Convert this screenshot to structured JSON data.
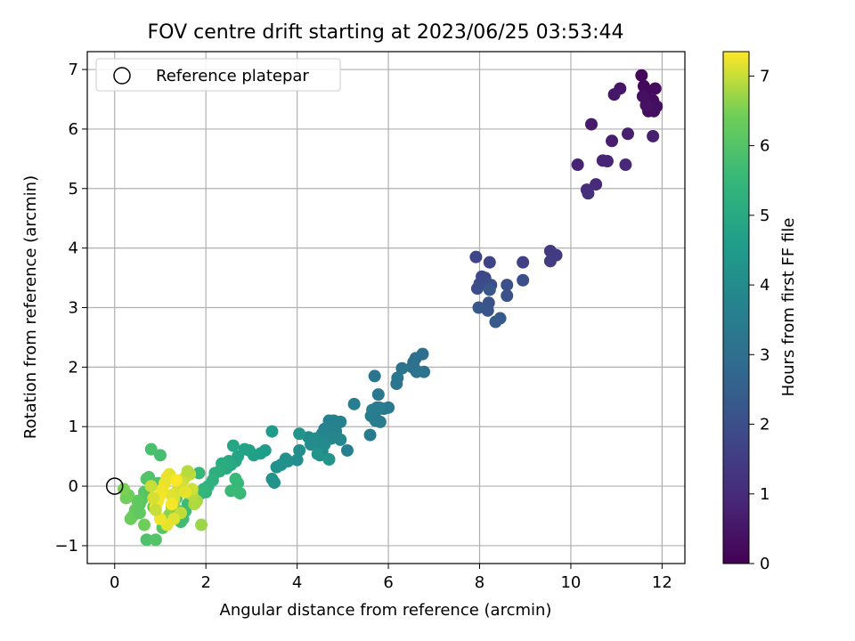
{
  "chart_data": {
    "type": "scatter",
    "title": "FOV centre drift starting at 2023/06/25 03:53:44",
    "xlabel": "Angular distance from reference (arcmin)",
    "ylabel": "Rotation from reference (arcmin)",
    "xlim": [
      -0.6,
      12.5
    ],
    "ylim": [
      -1.3,
      7.3
    ],
    "xticks": [
      0,
      2,
      4,
      6,
      8,
      10,
      12
    ],
    "yticks": [
      -1,
      0,
      1,
      2,
      3,
      4,
      5,
      6,
      7
    ],
    "grid": true,
    "legend": {
      "location": "top-left",
      "entries": [
        "Reference platepar"
      ]
    },
    "reference_point": {
      "x": 0,
      "y": 0,
      "label": "Reference platepar"
    },
    "colorbar": {
      "label": "Hours from first FF file",
      "colormap": "viridis",
      "range": [
        0,
        7.35
      ],
      "ticks": [
        0,
        1,
        2,
        3,
        4,
        5,
        6,
        7
      ]
    },
    "series": [
      {
        "color_by": "hours",
        "x": [
          11.55,
          11.6,
          11.65,
          11.85,
          11.8,
          11.7,
          11.82,
          11.88,
          11.58,
          11.65,
          11.08,
          10.95,
          10.45,
          10.9,
          11.25,
          11.8,
          10.15,
          10.7,
          10.8,
          11.2,
          10.55,
          10.35,
          10.38,
          9.55,
          9.68,
          9.55,
          8.95,
          8.22,
          7.92,
          8.05,
          8.12,
          8.0,
          7.95,
          8.25,
          8.6,
          8.95,
          8.6,
          8.2,
          8.18,
          7.98,
          8.22,
          8.35,
          8.45
        ],
        "y": [
          6.9,
          6.72,
          6.58,
          6.68,
          6.48,
          6.3,
          6.3,
          6.38,
          6.55,
          6.4,
          6.68,
          6.58,
          6.08,
          5.8,
          5.92,
          5.88,
          5.4,
          5.47,
          5.46,
          5.4,
          5.07,
          4.98,
          4.92,
          3.95,
          3.88,
          3.78,
          3.76,
          3.76,
          3.85,
          3.52,
          3.5,
          3.4,
          3.32,
          3.38,
          3.38,
          3.46,
          3.2,
          3.08,
          2.95,
          3.0,
          3.3,
          2.76,
          2.82
        ],
        "hours": [
          0.15,
          0.18,
          0.2,
          0.22,
          0.25,
          0.28,
          0.3,
          0.32,
          0.35,
          0.38,
          0.5,
          0.55,
          0.6,
          0.65,
          0.7,
          0.72,
          0.8,
          0.85,
          0.88,
          0.95,
          1.0,
          1.05,
          1.1,
          1.4,
          1.45,
          1.5,
          1.6,
          1.7,
          1.75,
          1.8,
          1.85,
          1.9,
          1.95,
          2.0,
          2.02,
          2.05,
          2.1,
          2.15,
          2.2,
          2.25,
          2.28,
          2.3,
          2.35
        ]
      },
      {
        "color_by": "hours",
        "x": [
          6.75,
          6.6,
          6.55,
          6.52,
          6.6,
          6.62,
          6.78,
          6.3,
          6.2,
          6.18,
          5.7,
          5.78,
          5.75,
          5.9,
          6.0,
          5.7,
          5.72,
          5.82,
          5.6,
          5.62,
          5.65,
          5.8,
          5.25,
          5.1,
          4.95,
          4.8,
          4.7,
          4.65,
          4.85,
          4.6,
          4.55,
          4.75,
          4.95,
          4.65,
          4.45,
          4.5,
          4.55,
          4.5,
          4.6,
          4.4,
          4.3,
          4.25,
          4.05,
          4.0,
          3.75,
          3.8,
          3.65,
          3.55,
          3.45,
          3.5,
          4.05,
          4.45,
          4.7
        ],
        "y": [
          2.22,
          2.15,
          2.08,
          2.0,
          1.95,
          1.92,
          1.92,
          1.98,
          1.82,
          1.72,
          1.85,
          1.54,
          1.32,
          1.3,
          1.32,
          1.2,
          1.1,
          1.08,
          0.86,
          1.18,
          1.28,
          1.32,
          1.38,
          0.6,
          1.08,
          1.1,
          1.1,
          0.98,
          0.92,
          0.96,
          0.88,
          0.8,
          0.78,
          0.78,
          0.72,
          0.68,
          0.58,
          0.52,
          0.7,
          0.8,
          0.7,
          0.82,
          0.6,
          0.44,
          0.46,
          0.42,
          0.36,
          0.32,
          0.12,
          0.06,
          0.88,
          0.54,
          0.45
        ],
        "hours": [
          3.0,
          3.02,
          3.05,
          3.08,
          3.1,
          3.12,
          3.15,
          3.18,
          3.2,
          3.22,
          3.25,
          3.28,
          3.3,
          3.32,
          3.35,
          3.38,
          3.4,
          3.42,
          3.45,
          3.48,
          3.5,
          3.52,
          3.55,
          3.58,
          3.6,
          3.62,
          3.65,
          3.68,
          3.7,
          3.72,
          3.75,
          3.78,
          3.8,
          3.82,
          3.85,
          3.88,
          3.9,
          3.92,
          3.95,
          3.98,
          4.0,
          4.02,
          4.05,
          4.08,
          4.1,
          4.12,
          4.15,
          4.18,
          4.2,
          4.22,
          4.25,
          4.28,
          4.3
        ]
      },
      {
        "color_by": "hours",
        "x": [
          3.45,
          3.3,
          3.2,
          3.05,
          2.95,
          2.85,
          2.7,
          2.65,
          2.6,
          2.55,
          2.5,
          2.45,
          2.35,
          2.3,
          2.2,
          2.15,
          2.05,
          2.0,
          1.95,
          1.9,
          1.85,
          2.7,
          2.65,
          2.55,
          2.75,
          1.65,
          1.6,
          1.55,
          1.5,
          1.45,
          1.4,
          1.35,
          1.0,
          0.8,
          0.95,
          0.75,
          0.7,
          0.65,
          0.6,
          0.55,
          0.5,
          0.45,
          0.4,
          0.35,
          0.3,
          0.25,
          0.2,
          1.1,
          1.2,
          1.25,
          1.3,
          1.9,
          0.7,
          0.9,
          1.05,
          0.55,
          0.85,
          0.65
        ],
        "y": [
          0.92,
          0.6,
          0.55,
          0.52,
          0.6,
          0.62,
          0.5,
          0.42,
          0.68,
          0.36,
          0.42,
          0.3,
          0.38,
          0.25,
          0.22,
          0.1,
          0.0,
          -0.1,
          -0.05,
          -0.12,
          0.22,
          0.05,
          0.12,
          -0.08,
          -0.12,
          -0.15,
          -0.3,
          -0.42,
          -0.55,
          -0.6,
          -0.42,
          -0.2,
          0.52,
          0.62,
          0.05,
          0.15,
          0.12,
          -0.1,
          -0.22,
          -0.3,
          -0.25,
          -0.4,
          -0.5,
          -0.55,
          -0.15,
          -0.2,
          -0.05,
          -0.6,
          -0.48,
          -0.35,
          -0.28,
          -0.65,
          -0.9,
          -0.9,
          -0.7,
          -0.45,
          -0.35,
          -0.65
        ],
        "hours": [
          4.5,
          4.55,
          4.6,
          4.65,
          4.7,
          4.75,
          4.8,
          4.85,
          4.9,
          4.95,
          5.0,
          5.05,
          5.1,
          5.15,
          5.2,
          5.25,
          5.3,
          5.35,
          5.4,
          5.45,
          5.5,
          5.52,
          5.55,
          5.58,
          5.6,
          5.62,
          5.65,
          5.68,
          5.7,
          5.72,
          5.75,
          5.78,
          5.8,
          5.85,
          5.9,
          5.95,
          6.0,
          6.05,
          6.1,
          6.15,
          6.2,
          6.25,
          6.3,
          6.35,
          6.4,
          6.45,
          6.5,
          6.55,
          6.6,
          6.65,
          6.7,
          6.72,
          5.9,
          6.0,
          6.1,
          6.2,
          6.3,
          6.4
        ]
      },
      {
        "color_by": "hours",
        "x": [
          1.8,
          1.75,
          1.7,
          1.65,
          1.55,
          1.5,
          1.45,
          1.4,
          1.35,
          1.3,
          1.25,
          1.2,
          1.15,
          1.1,
          1.05,
          1.0,
          0.95,
          0.9,
          0.85,
          0.8,
          1.6,
          1.7,
          1.45,
          1.3,
          1.15,
          1.0,
          0.9,
          1.25,
          1.35,
          1.55
        ],
        "y": [
          -0.25,
          -0.3,
          -0.15,
          0.2,
          0.15,
          0.1,
          0.05,
          0.0,
          -0.1,
          -0.2,
          -0.15,
          0.2,
          0.15,
          0.05,
          -0.05,
          -0.15,
          -0.25,
          -0.35,
          -0.2,
          0.0,
          0.25,
          -0.05,
          -0.45,
          -0.55,
          -0.65,
          -0.55,
          -0.4,
          -0.3,
          0.1,
          -0.1
        ],
        "hours": [
          6.8,
          6.85,
          6.9,
          6.95,
          7.0,
          7.02,
          7.05,
          7.08,
          7.1,
          7.12,
          7.15,
          7.18,
          7.2,
          7.22,
          7.25,
          7.28,
          7.3,
          7.32,
          7.1,
          7.0,
          6.9,
          7.05,
          6.95,
          7.15,
          7.2,
          7.25,
          7.0,
          7.3,
          7.32,
          7.2
        ]
      }
    ]
  }
}
